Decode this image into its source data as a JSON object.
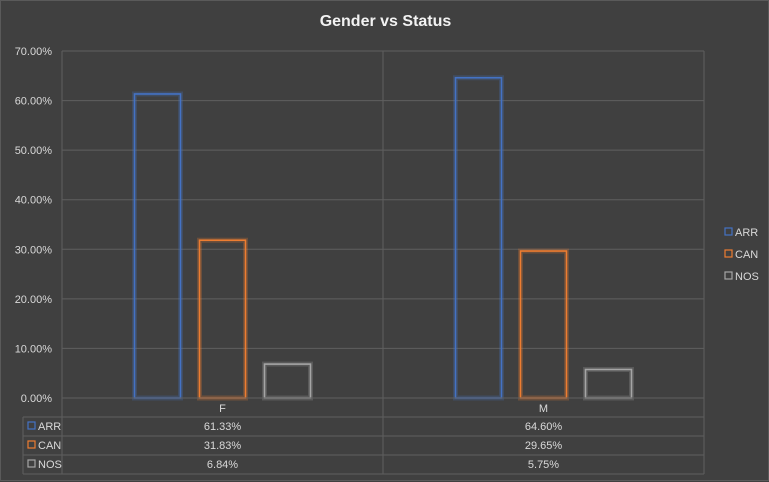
{
  "chart_data": {
    "type": "bar",
    "title": "Gender vs Status",
    "xlabel": "",
    "ylabel": "",
    "categories": [
      "F",
      "M"
    ],
    "series": [
      {
        "name": "ARR",
        "values": [
          61.33,
          64.6
        ],
        "labels": [
          "61.33%",
          "64.60%"
        ],
        "color": "#4472c4"
      },
      {
        "name": "CAN",
        "values": [
          31.83,
          29.65
        ],
        "labels": [
          "31.83%",
          "29.65%"
        ],
        "color": "#ed7d31"
      },
      {
        "name": "NOS",
        "values": [
          6.84,
          5.75
        ],
        "labels": [
          "6.84%",
          "5.75%"
        ],
        "color": "#a5a5a5"
      }
    ],
    "ylim": [
      0,
      70
    ],
    "yticks": [
      0,
      10,
      20,
      30,
      40,
      50,
      60,
      70
    ],
    "ytick_labels": [
      "0.00%",
      "10.00%",
      "20.00%",
      "30.00%",
      "40.00%",
      "50.00%",
      "60.00%",
      "70.00%"
    ],
    "grid": true,
    "legend_position": "right",
    "data_table": true
  }
}
